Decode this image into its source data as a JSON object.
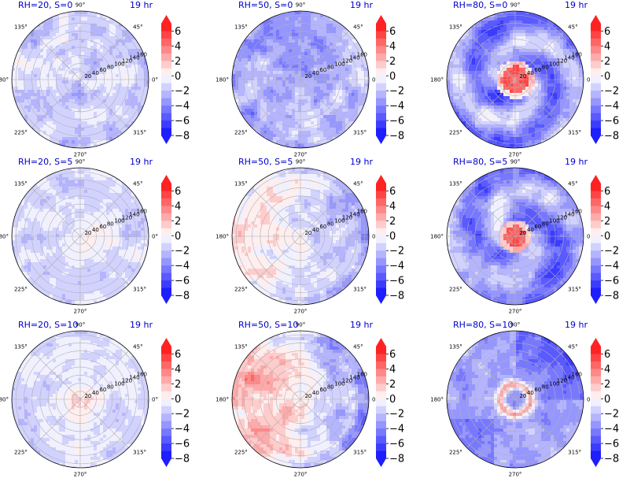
{
  "chart_data": {
    "type": "heatmap",
    "subtype": "polar filled contour grid",
    "layout": {
      "rows": 3,
      "cols": 3
    },
    "time_label": "19 hr",
    "angular_ticks": [
      "90°",
      "45°",
      "0°",
      "315°",
      "270°",
      "225°",
      "180°",
      "135°"
    ],
    "radial_ticks": [
      "20",
      "40",
      "60",
      "80",
      "100",
      "120",
      "140",
      "160"
    ],
    "r_max": 170,
    "colorbar": {
      "cmap": "bwr",
      "vmin": -8,
      "vmax": 7,
      "ticks": [
        "6",
        "4",
        "2",
        "0",
        "−2",
        "−4",
        "−6",
        "−8"
      ],
      "extend": "both"
    },
    "panels": [
      {
        "title": "RH=20, S=0",
        "rh": 20,
        "s": 0,
        "value_field": "weak negative, scattered positive cells"
      },
      {
        "title": "RH=50, S=0",
        "rh": 50,
        "s": 0,
        "value_field": "moderate negative, scattered positive cells"
      },
      {
        "title": "RH=80, S=0",
        "rh": 80,
        "s": 0,
        "value_field": "strong positive core, strong negative spiral bands"
      },
      {
        "title": "RH=20, S=5",
        "rh": 20,
        "s": 5,
        "value_field": "weak positive core, weak negative surroundings"
      },
      {
        "title": "RH=50, S=5",
        "rh": 50,
        "s": 5,
        "value_field": "positive west half, negative east half"
      },
      {
        "title": "RH=80, S=5",
        "rh": 80,
        "s": 5,
        "value_field": "strong positive core, strong negative east"
      },
      {
        "title": "RH=20, S=10",
        "rh": 20,
        "s": 10,
        "value_field": "weak positive core, weak negative ring"
      },
      {
        "title": "RH=50, S=10",
        "rh": 50,
        "s": 10,
        "value_field": "strong positive west, negative east"
      },
      {
        "title": "RH=80, S=10",
        "rh": 80,
        "s": 10,
        "value_field": "positive core ring, strong negative north-east"
      }
    ]
  }
}
